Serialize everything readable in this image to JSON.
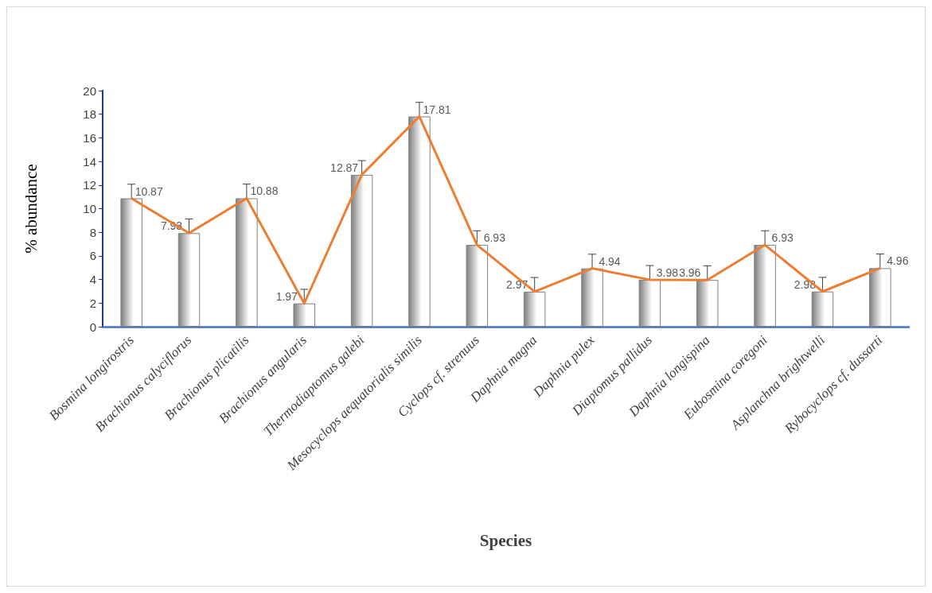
{
  "chart_data": {
    "type": "bar",
    "xlabel": "Species",
    "ylabel": "% abundance",
    "categories": [
      "Bosmina longirostris",
      "Brachionus calyciflorus",
      "Brachionus plicatilis",
      "Brachionus angularis",
      "Thermodiaptomus galebi",
      "Mesocyclops aequatorialis similis",
      "Cyclops cf. strenuus",
      "Daphnia magna",
      "Daphnia pulex",
      "Diaptomus pallidus",
      "Daphnia longispina",
      "Eubosmina coregoni",
      "Asplanchna brightwelli",
      "Rybocyclops cf. dussarti"
    ],
    "series": [
      {
        "color": "#7f7f7f",
        "values": [
          10.87,
          7.93,
          10.88,
          1.97,
          12.87,
          17.81,
          6.93,
          2.97,
          4.94,
          3.98,
          3.96,
          6.93,
          2.98,
          4.96
        ],
        "errors": [
          [
            10.87,
            12.07
          ],
          [
            7.93,
            9.13
          ],
          [
            10.88,
            12.08
          ],
          [
            1.97,
            3.17
          ],
          [
            12.87,
            14.07
          ],
          [
            17.81,
            19.01
          ],
          [
            6.93,
            8.13
          ],
          [
            2.97,
            4.17
          ],
          [
            4.94,
            6.14
          ],
          [
            3.98,
            5.18
          ],
          [
            3.96,
            5.16
          ],
          [
            6.93,
            8.13
          ],
          [
            2.98,
            4.18
          ],
          [
            4.96,
            6.16
          ]
        ]
      },
      {
        "type": "line",
        "color": "#ed7d31",
        "values": [
          10.87,
          7.93,
          10.88,
          1.97,
          12.87,
          17.81,
          6.93,
          2.97,
          4.94,
          3.98,
          3.96,
          6.93,
          2.98,
          4.96
        ],
        "value_labels": [
          null,
          null,
          null,
          null,
          null,
          null,
          null,
          null,
          null,
          null,
          null,
          null,
          null,
          null
        ]
      }
    ],
    "data_labels": true,
    "ylim": [
      0,
      20
    ],
    "yticks": [
      0,
      2,
      4,
      6,
      8,
      10,
      12,
      14,
      16,
      18,
      20
    ],
    "grid": false,
    "marker": "none"
  }
}
